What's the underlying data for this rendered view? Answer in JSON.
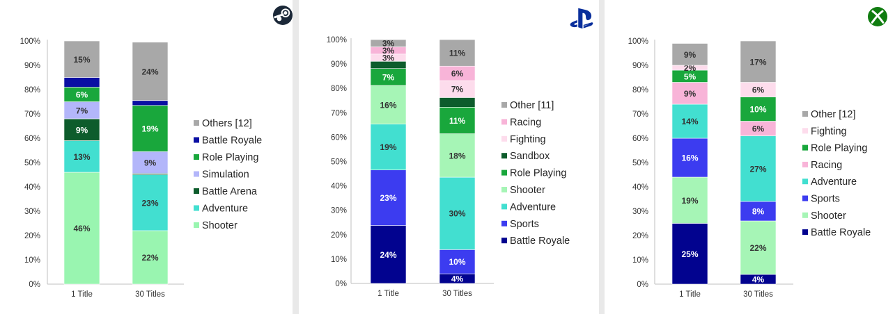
{
  "charts": [
    {
      "platform_icon": "steam-logo-icon",
      "chart_data": {
        "type": "bar",
        "stacked": true,
        "categories": [
          "1 Title",
          "30 Titles"
        ],
        "yticks": [
          "0%",
          "10%",
          "20%",
          "30%",
          "40%",
          "50%",
          "60%",
          "70%",
          "80%",
          "90%",
          "100%"
        ],
        "ylim": [
          0,
          100
        ],
        "legend_position": "right",
        "grid": false,
        "series": [
          {
            "name": "Shooter",
            "color": "#99f5b0",
            "values": [
              46,
              22
            ],
            "labels": [
              "46%",
              "22%"
            ]
          },
          {
            "name": "Adventure",
            "color": "#42dfd0",
            "values": [
              13,
              23
            ],
            "labels": [
              "13%",
              "23%"
            ]
          },
          {
            "name": "Battle Arena",
            "color": "#0d5c2c",
            "values": [
              9,
              0.5
            ],
            "labels": [
              "9%",
              ""
            ]
          },
          {
            "name": "Simulation",
            "color": "#b3b6fa",
            "values": [
              7,
              9
            ],
            "labels": [
              "7%",
              "9%"
            ]
          },
          {
            "name": "Role Playing",
            "color": "#19a73c",
            "values": [
              6,
              19
            ],
            "labels": [
              "6%",
              "19%"
            ]
          },
          {
            "name": "Battle Royale",
            "color": "#0a0fa3",
            "values": [
              4,
              2
            ],
            "labels": [
              "",
              ""
            ]
          },
          {
            "name": "Others [12]",
            "color": "#a8a8a8",
            "values": [
              15,
              24
            ],
            "labels": [
              "15%",
              "24%"
            ]
          }
        ],
        "legend_order": [
          "Others [12]",
          "Battle Royale",
          "Role Playing",
          "Simulation",
          "Battle Arena",
          "Adventure",
          "Shooter"
        ]
      }
    },
    {
      "platform_icon": "playstation-logo-icon",
      "chart_data": {
        "type": "bar",
        "stacked": true,
        "categories": [
          "1 Title",
          "30 Titles"
        ],
        "yticks": [
          "0%",
          "10%",
          "20%",
          "30%",
          "40%",
          "50%",
          "60%",
          "70%",
          "80%",
          "90%",
          "100%"
        ],
        "ylim": [
          0,
          100
        ],
        "legend_position": "right",
        "grid": false,
        "series": [
          {
            "name": "Battle Royale",
            "color": "#02038f",
            "values": [
              24,
              4
            ],
            "labels": [
              "24%",
              "4%"
            ]
          },
          {
            "name": "Sports",
            "color": "#3c3cf0",
            "values": [
              23,
              10
            ],
            "labels": [
              "23%",
              "10%"
            ]
          },
          {
            "name": "Adventure",
            "color": "#42dfd0",
            "values": [
              19,
              30
            ],
            "labels": [
              "19%",
              "30%"
            ]
          },
          {
            "name": "Shooter",
            "color": "#a6f5b6",
            "values": [
              16,
              18
            ],
            "labels": [
              "16%",
              "18%"
            ]
          },
          {
            "name": "Role Playing",
            "color": "#19a73c",
            "values": [
              7,
              11
            ],
            "labels": [
              "7%",
              "11%"
            ]
          },
          {
            "name": "Sandbox",
            "color": "#0d5c2c",
            "values": [
              3,
              4
            ],
            "labels": [
              "",
              ""
            ]
          },
          {
            "name": "Fighting",
            "color": "#fddcec",
            "values": [
              3,
              7
            ],
            "labels": [
              "3%",
              "7%"
            ]
          },
          {
            "name": "Racing",
            "color": "#f8b4d8",
            "values": [
              3,
              6
            ],
            "labels": [
              "3%",
              "6%"
            ]
          },
          {
            "name": "Other [11]",
            "color": "#a8a8a8",
            "values": [
              3,
              11
            ],
            "labels": [
              "3%",
              "11%"
            ]
          }
        ],
        "legend_order": [
          "Other [11]",
          "Racing",
          "Fighting",
          "Sandbox",
          "Role Playing",
          "Shooter",
          "Adventure",
          "Sports",
          "Battle Royale"
        ]
      }
    },
    {
      "platform_icon": "xbox-logo-icon",
      "chart_data": {
        "type": "bar",
        "stacked": true,
        "categories": [
          "1 Title",
          "30 Titles"
        ],
        "yticks": [
          "0%",
          "10%",
          "20%",
          "30%",
          "40%",
          "50%",
          "60%",
          "70%",
          "80%",
          "90%",
          "100%"
        ],
        "ylim": [
          0,
          100
        ],
        "legend_position": "right",
        "grid": false,
        "series": [
          {
            "name": "Battle Royale",
            "color": "#02038f",
            "values": [
              25,
              4
            ],
            "labels": [
              "25%",
              "4%"
            ]
          },
          {
            "name": "Shooter",
            "color": "#a6f5b6",
            "values": [
              19,
              22
            ],
            "labels": [
              "19%",
              "22%"
            ]
          },
          {
            "name": "Sports",
            "color": "#3c3cf0",
            "values": [
              16,
              8
            ],
            "labels": [
              "16%",
              "8%"
            ]
          },
          {
            "name": "Adventure",
            "color": "#42dfd0",
            "values": [
              14,
              27
            ],
            "labels": [
              "14%",
              "27%"
            ]
          },
          {
            "name": "Racing",
            "color": "#f8b4d8",
            "values": [
              9,
              6
            ],
            "labels": [
              "9%",
              "6%"
            ]
          },
          {
            "name": "Role Playing",
            "color": "#19a73c",
            "values": [
              5,
              10
            ],
            "labels": [
              "5%",
              "10%"
            ]
          },
          {
            "name": "Fighting",
            "color": "#fddcec",
            "values": [
              2,
              6
            ],
            "labels": [
              "2%",
              "6%"
            ]
          },
          {
            "name": "Other [12]",
            "color": "#a8a8a8",
            "values": [
              9,
              17
            ],
            "labels": [
              "9%",
              "17%"
            ]
          }
        ],
        "legend_order": [
          "Other [12]",
          "Fighting",
          "Role Playing",
          "Racing",
          "Adventure",
          "Sports",
          "Shooter",
          "Battle Royale"
        ]
      }
    }
  ]
}
